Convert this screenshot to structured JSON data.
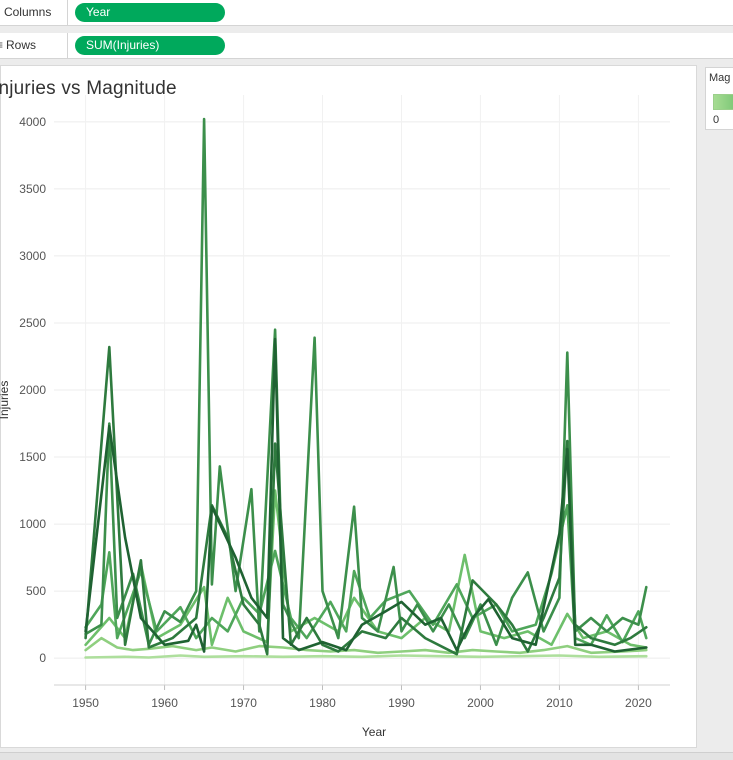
{
  "shelves": {
    "columns": {
      "label": "Columns",
      "pill": "Year"
    },
    "rows": {
      "label": "Rows",
      "pill": "SUM(Injuries)"
    }
  },
  "legend": {
    "title": "Mag",
    "min_label": "0"
  },
  "colors": {
    "green_pill": "#00a95c",
    "ramp": [
      "#aedf9d",
      "#8fcf7f",
      "#6dbf6b",
      "#4fa65a",
      "#3c8f4b",
      "#2e7a3e",
      "#1f6232"
    ]
  },
  "chart_data": {
    "type": "line",
    "title": "Injuries vs Magnitude",
    "xlabel": "Year",
    "ylabel": "Injuries",
    "xlim": [
      1946,
      2024
    ],
    "ylim": [
      -200,
      4200
    ],
    "x_ticks": [
      1950,
      1960,
      1970,
      1980,
      1990,
      2000,
      2010,
      2020
    ],
    "y_ticks": [
      0,
      500,
      1000,
      1500,
      2000,
      2500,
      3000,
      3500,
      4000
    ],
    "grid": true,
    "legend_placement": "right",
    "series": [
      {
        "color": "#aedf9d",
        "points": [
          [
            1950,
            5
          ],
          [
            1955,
            10
          ],
          [
            1958,
            5
          ],
          [
            1962,
            20
          ],
          [
            1965,
            10
          ],
          [
            1970,
            15
          ],
          [
            1975,
            10
          ],
          [
            1980,
            15
          ],
          [
            1985,
            10
          ],
          [
            1990,
            20
          ],
          [
            1995,
            15
          ],
          [
            2000,
            10
          ],
          [
            2005,
            15
          ],
          [
            2010,
            20
          ],
          [
            2015,
            10
          ],
          [
            2021,
            15
          ]
        ]
      },
      {
        "color": "#8fcf7f",
        "points": [
          [
            1950,
            60
          ],
          [
            1952,
            150
          ],
          [
            1954,
            80
          ],
          [
            1956,
            60
          ],
          [
            1958,
            70
          ],
          [
            1961,
            90
          ],
          [
            1964,
            60
          ],
          [
            1966,
            80
          ],
          [
            1969,
            50
          ],
          [
            1972,
            90
          ],
          [
            1975,
            80
          ],
          [
            1978,
            60
          ],
          [
            1981,
            50
          ],
          [
            1984,
            60
          ],
          [
            1987,
            40
          ],
          [
            1990,
            50
          ],
          [
            1993,
            60
          ],
          [
            1996,
            40
          ],
          [
            1999,
            60
          ],
          [
            2002,
            50
          ],
          [
            2005,
            40
          ],
          [
            2008,
            60
          ],
          [
            2011,
            90
          ],
          [
            2014,
            40
          ],
          [
            2018,
            50
          ],
          [
            2021,
            60
          ]
        ]
      },
      {
        "color": "#6dbf6b",
        "points": [
          [
            1950,
            100
          ],
          [
            1953,
            300
          ],
          [
            1955,
            150
          ],
          [
            1957,
            700
          ],
          [
            1959,
            150
          ],
          [
            1962,
            250
          ],
          [
            1965,
            530
          ],
          [
            1966,
            100
          ],
          [
            1968,
            450
          ],
          [
            1970,
            200
          ],
          [
            1973,
            120
          ],
          [
            1974,
            1250
          ],
          [
            1976,
            200
          ],
          [
            1979,
            300
          ],
          [
            1982,
            200
          ],
          [
            1984,
            450
          ],
          [
            1987,
            200
          ],
          [
            1990,
            150
          ],
          [
            1993,
            300
          ],
          [
            1996,
            200
          ],
          [
            1998,
            770
          ],
          [
            2000,
            200
          ],
          [
            2003,
            150
          ],
          [
            2006,
            200
          ],
          [
            2009,
            100
          ],
          [
            2011,
            330
          ],
          [
            2013,
            150
          ],
          [
            2016,
            200
          ],
          [
            2019,
            100
          ],
          [
            2021,
            80
          ]
        ]
      },
      {
        "color": "#4fa65a",
        "points": [
          [
            1950,
            230
          ],
          [
            1952,
            400
          ],
          [
            1953,
            790
          ],
          [
            1954,
            150
          ],
          [
            1957,
            650
          ],
          [
            1959,
            200
          ],
          [
            1962,
            380
          ],
          [
            1964,
            150
          ],
          [
            1966,
            300
          ],
          [
            1968,
            200
          ],
          [
            1970,
            450
          ],
          [
            1972,
            330
          ],
          [
            1974,
            800
          ],
          [
            1976,
            300
          ],
          [
            1978,
            150
          ],
          [
            1981,
            420
          ],
          [
            1983,
            200
          ],
          [
            1984,
            650
          ],
          [
            1986,
            300
          ],
          [
            1988,
            430
          ],
          [
            1991,
            500
          ],
          [
            1994,
            250
          ],
          [
            1997,
            550
          ],
          [
            1999,
            300
          ],
          [
            2002,
            400
          ],
          [
            2004,
            200
          ],
          [
            2007,
            250
          ],
          [
            2009,
            630
          ],
          [
            2011,
            1140
          ],
          [
            2012,
            150
          ],
          [
            2014,
            100
          ],
          [
            2016,
            320
          ],
          [
            2018,
            120
          ],
          [
            2020,
            350
          ],
          [
            2021,
            150
          ]
        ]
      },
      {
        "color": "#3c8f4b",
        "points": [
          [
            1950,
            180
          ],
          [
            1952,
            250
          ],
          [
            1953,
            1750
          ],
          [
            1954,
            300
          ],
          [
            1956,
            630
          ],
          [
            1958,
            100
          ],
          [
            1960,
            350
          ],
          [
            1962,
            270
          ],
          [
            1964,
            500
          ],
          [
            1965,
            4020
          ],
          [
            1966,
            550
          ],
          [
            1967,
            1430
          ],
          [
            1969,
            500
          ],
          [
            1971,
            1260
          ],
          [
            1972,
            200
          ],
          [
            1974,
            2450
          ],
          [
            1975,
            400
          ],
          [
            1977,
            150
          ],
          [
            1979,
            2390
          ],
          [
            1980,
            500
          ],
          [
            1982,
            150
          ],
          [
            1984,
            1130
          ],
          [
            1985,
            300
          ],
          [
            1987,
            200
          ],
          [
            1989,
            680
          ],
          [
            1990,
            200
          ],
          [
            1992,
            400
          ],
          [
            1994,
            200
          ],
          [
            1996,
            400
          ],
          [
            1998,
            150
          ],
          [
            2000,
            400
          ],
          [
            2002,
            100
          ],
          [
            2004,
            450
          ],
          [
            2006,
            640
          ],
          [
            2008,
            200
          ],
          [
            2010,
            450
          ],
          [
            2011,
            2280
          ],
          [
            2012,
            200
          ],
          [
            2014,
            300
          ],
          [
            2016,
            200
          ],
          [
            2018,
            300
          ],
          [
            2020,
            250
          ],
          [
            2021,
            530
          ]
        ]
      },
      {
        "color": "#2e7a3e",
        "points": [
          [
            1950,
            150
          ],
          [
            1953,
            2320
          ],
          [
            1955,
            100
          ],
          [
            1957,
            730
          ],
          [
            1958,
            80
          ],
          [
            1961,
            150
          ],
          [
            1964,
            300
          ],
          [
            1966,
            1140
          ],
          [
            1968,
            900
          ],
          [
            1970,
            400
          ],
          [
            1972,
            250
          ],
          [
            1973,
            30
          ],
          [
            1974,
            1600
          ],
          [
            1976,
            100
          ],
          [
            1978,
            300
          ],
          [
            1980,
            100
          ],
          [
            1982,
            50
          ],
          [
            1985,
            200
          ],
          [
            1988,
            150
          ],
          [
            1990,
            300
          ],
          [
            1993,
            150
          ],
          [
            1997,
            30
          ],
          [
            1999,
            580
          ],
          [
            2002,
            400
          ],
          [
            2004,
            250
          ],
          [
            2006,
            50
          ],
          [
            2008,
            300
          ],
          [
            2010,
            600
          ],
          [
            2011,
            1620
          ],
          [
            2012,
            250
          ],
          [
            2014,
            150
          ],
          [
            2017,
            100
          ],
          [
            2019,
            150
          ],
          [
            2021,
            230
          ]
        ]
      },
      {
        "color": "#1f6232",
        "points": [
          [
            1950,
            200
          ],
          [
            1953,
            1730
          ],
          [
            1955,
            900
          ],
          [
            1957,
            300
          ],
          [
            1960,
            100
          ],
          [
            1963,
            130
          ],
          [
            1964,
            250
          ],
          [
            1965,
            50
          ],
          [
            1966,
            1130
          ],
          [
            1969,
            750
          ],
          [
            1971,
            450
          ],
          [
            1973,
            300
          ],
          [
            1974,
            2380
          ],
          [
            1975,
            150
          ],
          [
            1977,
            60
          ],
          [
            1980,
            120
          ],
          [
            1983,
            60
          ],
          [
            1985,
            250
          ],
          [
            1988,
            350
          ],
          [
            1990,
            420
          ],
          [
            1993,
            250
          ],
          [
            1995,
            300
          ],
          [
            1997,
            60
          ],
          [
            1999,
            300
          ],
          [
            2001,
            440
          ],
          [
            2004,
            150
          ],
          [
            2007,
            100
          ],
          [
            2010,
            930
          ],
          [
            2011,
            1560
          ],
          [
            2012,
            100
          ],
          [
            2014,
            100
          ],
          [
            2017,
            50
          ],
          [
            2021,
            80
          ]
        ]
      }
    ]
  }
}
